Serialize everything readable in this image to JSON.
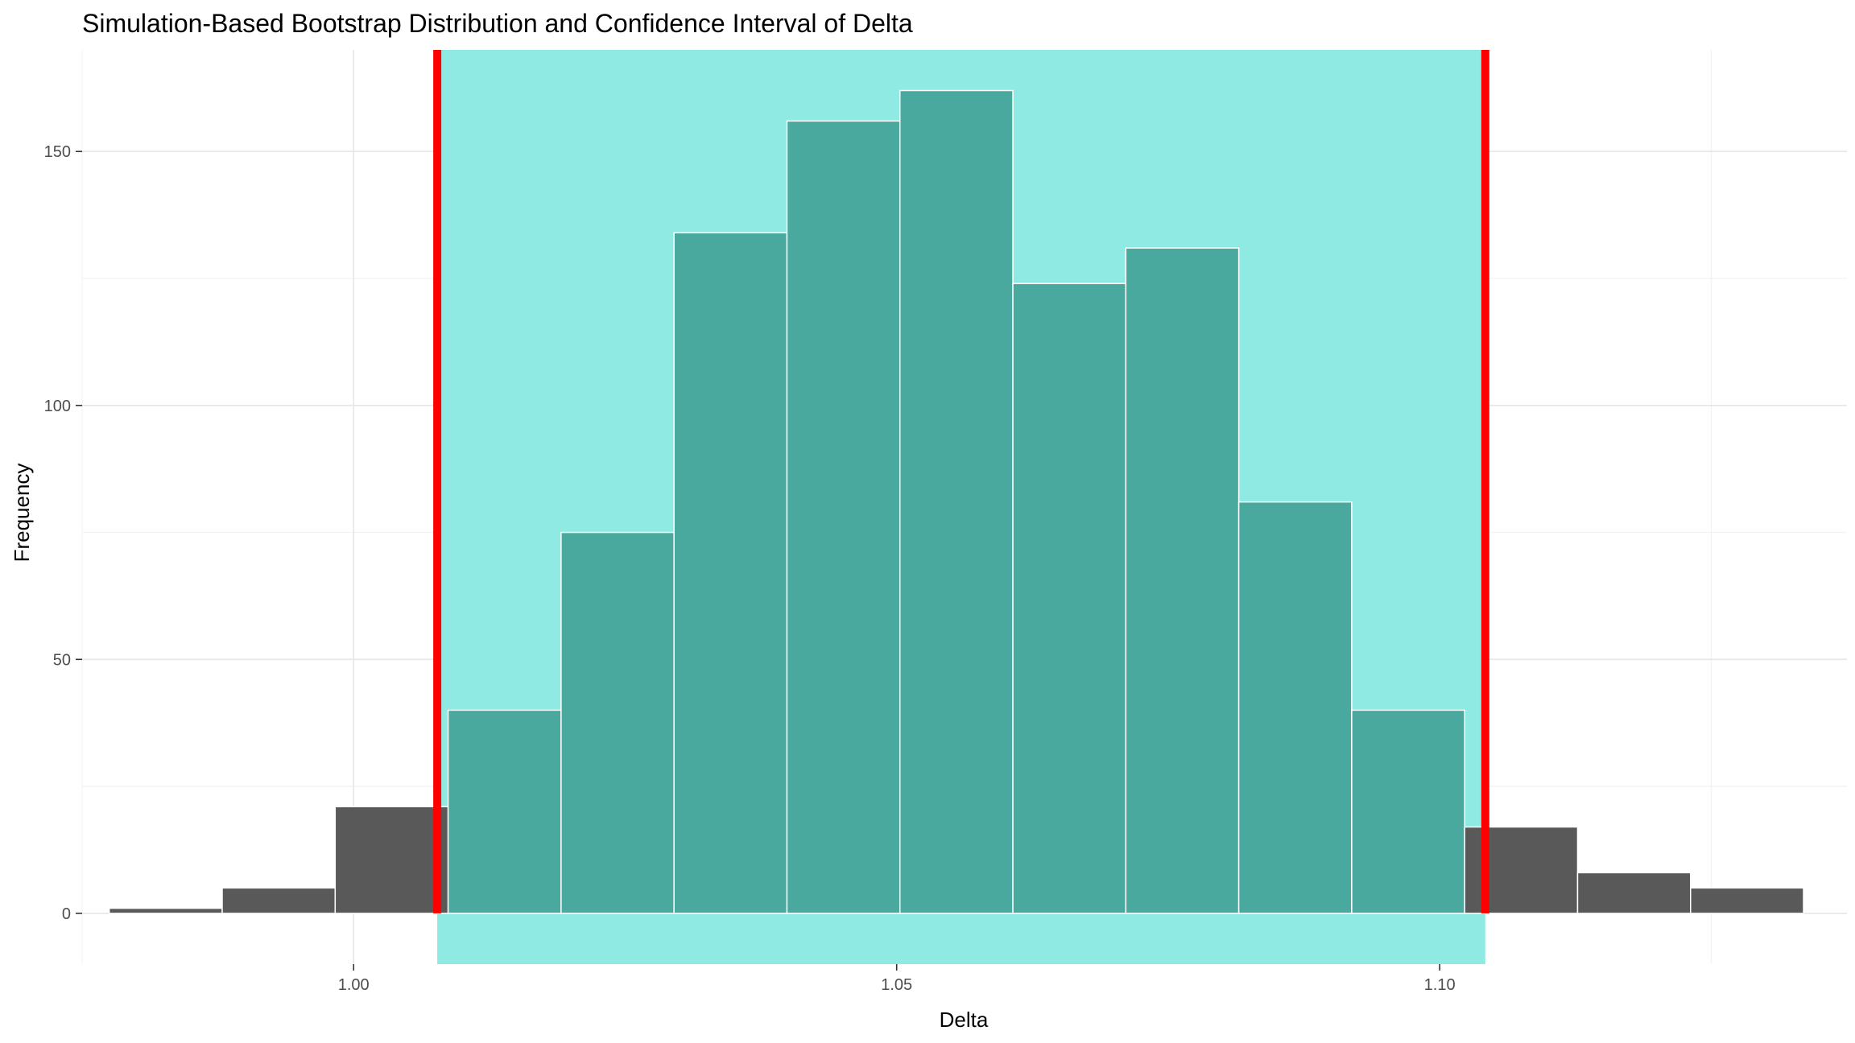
{
  "chart_data": {
    "type": "bar",
    "title": "Simulation-Based Bootstrap Distribution and Confidence Interval of Delta",
    "xlabel": "Delta",
    "ylabel": "Frequency",
    "xlim": [
      0.975,
      1.1375
    ],
    "ylim": [
      -10,
      170
    ],
    "x_ticks": [
      1.0,
      1.05,
      1.1
    ],
    "x_tick_labels": [
      "1.00",
      "1.05",
      "1.10"
    ],
    "y_ticks": [
      0,
      50,
      100,
      150
    ],
    "y_tick_labels": [
      "0",
      "50",
      "100",
      "150"
    ],
    "bin_width": 0.0104,
    "bins": [
      {
        "x_start": 0.9775,
        "x_end": 0.9879,
        "count": 1
      },
      {
        "x_start": 0.9879,
        "x_end": 0.9983,
        "count": 5
      },
      {
        "x_start": 0.9983,
        "x_end": 1.0087,
        "count": 21
      },
      {
        "x_start": 1.0087,
        "x_end": 1.0191,
        "count": 40
      },
      {
        "x_start": 1.0191,
        "x_end": 1.0295,
        "count": 75
      },
      {
        "x_start": 1.0295,
        "x_end": 1.0399,
        "count": 134
      },
      {
        "x_start": 1.0399,
        "x_end": 1.0503,
        "count": 156
      },
      {
        "x_start": 1.0503,
        "x_end": 1.0607,
        "count": 162
      },
      {
        "x_start": 1.0607,
        "x_end": 1.0711,
        "count": 124
      },
      {
        "x_start": 1.0711,
        "x_end": 1.0815,
        "count": 131
      },
      {
        "x_start": 1.0815,
        "x_end": 1.0919,
        "count": 81
      },
      {
        "x_start": 1.0919,
        "x_end": 1.1023,
        "count": 40
      },
      {
        "x_start": 1.1023,
        "x_end": 1.1127,
        "count": 17
      },
      {
        "x_start": 1.1127,
        "x_end": 1.1231,
        "count": 8
      },
      {
        "x_start": 1.1231,
        "x_end": 1.1335,
        "count": 5
      }
    ],
    "confidence_interval": {
      "lower": 1.0077,
      "upper": 1.1042
    },
    "grid": true,
    "colors": {
      "bar_outside": "#595959",
      "bar_inside": "#4aa99e",
      "ci_band": "#8eeae3",
      "ci_line": "#ff0000",
      "bar_border": "#ffffff",
      "grid_major": "#e6e6e6",
      "grid_minor": "#f2f2f2"
    }
  }
}
